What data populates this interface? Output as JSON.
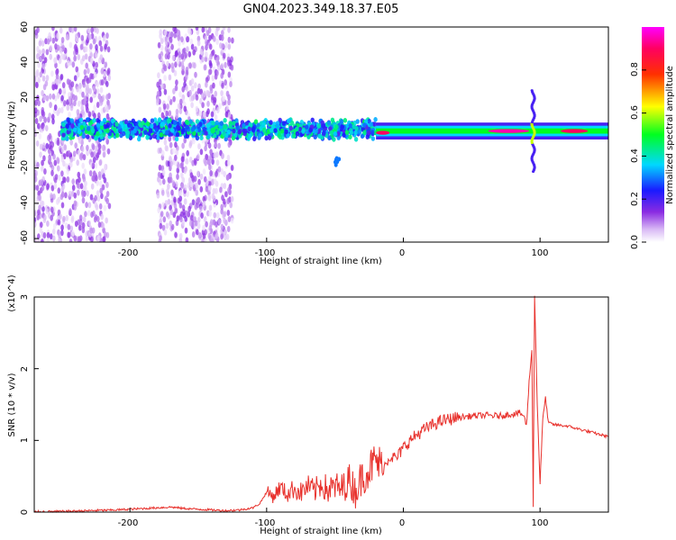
{
  "title": "GN04.2023.349.18.37.E05",
  "colors": {
    "snr_line": "#e8312c",
    "axis": "#000000",
    "background": "#ffffff"
  },
  "chart_data": [
    {
      "type": "heatmap",
      "xlabel": "Height of straight line (km)",
      "ylabel": "Frequency (Hz)",
      "xlim": [
        -270,
        150
      ],
      "ylim": [
        -62,
        60
      ],
      "x_ticks": [
        "-200",
        "-100",
        "0",
        "100"
      ],
      "y_ticks": [
        "60",
        "40",
        "20",
        "0",
        "-20",
        "-40",
        "-60"
      ],
      "colorbar": {
        "label": "Normalized spectral amplitude",
        "range": [
          0,
          1
        ],
        "ticks": [
          "0.0",
          "0.2",
          "0.4",
          "0.6",
          "0.8"
        ],
        "colormap": "rainbow (white-violet-blue-cyan-green-yellow-red-magenta)"
      },
      "features": [
        {
          "kind": "broadband noise",
          "x_range": [
            -270,
            -215
          ],
          "f_range": [
            -62,
            60
          ],
          "amplitude": 0.1
        },
        {
          "kind": "broadband noise",
          "x_range": [
            -180,
            -125
          ],
          "f_range": [
            -62,
            60
          ],
          "amplitude": 0.1
        },
        {
          "kind": "noisy signal band",
          "x_range": [
            -250,
            -20
          ],
          "f_center": 2,
          "f_halfwidth": 6,
          "amplitude": 0.3
        },
        {
          "kind": "narrow signal band",
          "x_range": [
            -20,
            150
          ],
          "f_center": 1,
          "f_halfwidth": 3,
          "amplitude": 0.5
        },
        {
          "kind": "strong spot",
          "x_range": [
            -20,
            -10
          ],
          "f_center": 0,
          "amplitude": 0.9
        },
        {
          "kind": "strong spot",
          "x_range": [
            62,
            92
          ],
          "f_center": 1,
          "amplitude": 0.95
        },
        {
          "kind": "strong spot",
          "x_range": [
            115,
            135
          ],
          "f_center": 1,
          "amplitude": 0.9
        },
        {
          "kind": "vertical burst",
          "x": 95,
          "f_range": [
            -22,
            24
          ],
          "amplitude": 0.6
        },
        {
          "kind": "isolated patch",
          "x": -49,
          "f_center": -17,
          "amplitude": 0.3
        }
      ]
    },
    {
      "type": "line",
      "xlabel": "Height of straight line (km)",
      "ylabel": "SNR (10 * v/v)",
      "y_multiplier": "(x10^4)",
      "xlim": [
        -270,
        150
      ],
      "ylim": [
        0,
        3
      ],
      "x_ticks": [
        "-200",
        "-100",
        "0",
        "100"
      ],
      "y_ticks": [
        "3",
        "2",
        "1",
        "0"
      ],
      "series": [
        {
          "x": [
            -270,
            -250,
            -230,
            -210,
            -200,
            -190,
            -180,
            -170,
            -160,
            -150,
            -140,
            -130,
            -120,
            -110,
            -105,
            -100,
            -95,
            -90,
            -85,
            -80,
            -75,
            -70,
            -65,
            -60,
            -55,
            -50,
            -45,
            -40,
            -35,
            -30,
            -25,
            -20,
            -15,
            -10,
            -5,
            0,
            5,
            10,
            15,
            20,
            25,
            30,
            35,
            40,
            50,
            60,
            70,
            80,
            85,
            88,
            90,
            92,
            94,
            95,
            96,
            98,
            100,
            102,
            104,
            106,
            110,
            120,
            130,
            140,
            150
          ],
          "y": [
            0.005,
            0.01,
            0.02,
            0.03,
            0.04,
            0.05,
            0.06,
            0.07,
            0.05,
            0.04,
            0.03,
            0.02,
            0.03,
            0.06,
            0.12,
            0.28,
            0.22,
            0.35,
            0.25,
            0.33,
            0.27,
            0.36,
            0.29,
            0.4,
            0.3,
            0.35,
            0.32,
            0.46,
            0.3,
            0.5,
            0.6,
            0.72,
            0.6,
            0.78,
            0.75,
            0.9,
            1.0,
            1.08,
            1.15,
            1.2,
            1.25,
            1.28,
            1.3,
            1.32,
            1.34,
            1.35,
            1.34,
            1.37,
            1.38,
            1.35,
            1.2,
            1.8,
            2.3,
            0.1,
            3.0,
            1.5,
            0.4,
            1.3,
            1.6,
            1.25,
            1.22,
            1.2,
            1.15,
            1.1,
            1.05
          ]
        }
      ]
    }
  ]
}
